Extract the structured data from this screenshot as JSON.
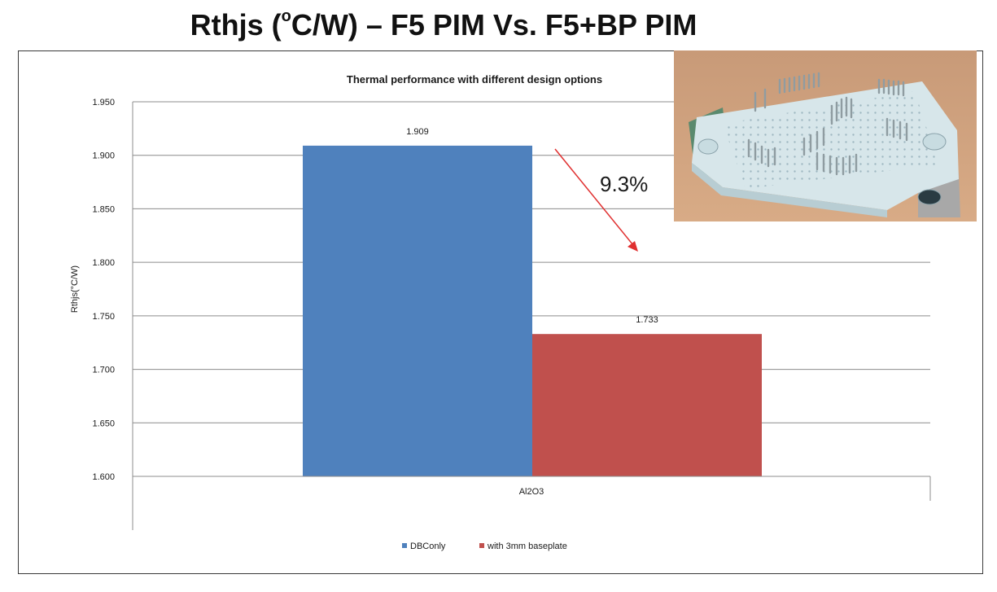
{
  "slide": {
    "title_prefix": "Rthjs (",
    "title_sup": "o",
    "title_suffix": "C/W) – F5 PIM Vs. F5+BP PIM"
  },
  "annotation": {
    "reduction_label": "9.3%",
    "arrow_color": "#e03030"
  },
  "photo": {
    "description_icon": "pim-module-photo"
  },
  "chart_data": {
    "type": "bar",
    "title": "Thermal performance with different design options",
    "ylabel": "Rthjs(°C/W)",
    "xlabel": "",
    "categories": [
      "Al2O3"
    ],
    "series": [
      {
        "name": "DBConly",
        "values": [
          1.909
        ],
        "color": "#4f81bd"
      },
      {
        "name": "with 3mm baseplate",
        "values": [
          1.733
        ],
        "color": "#c0504d"
      }
    ],
    "ylim": [
      1.6,
      1.95
    ],
    "yticks": [
      "1.600",
      "1.650",
      "1.700",
      "1.750",
      "1.800",
      "1.850",
      "1.900",
      "1.950"
    ],
    "data_labels": [
      "1.909",
      "1.733"
    ],
    "grid": true,
    "legend_position": "bottom"
  }
}
